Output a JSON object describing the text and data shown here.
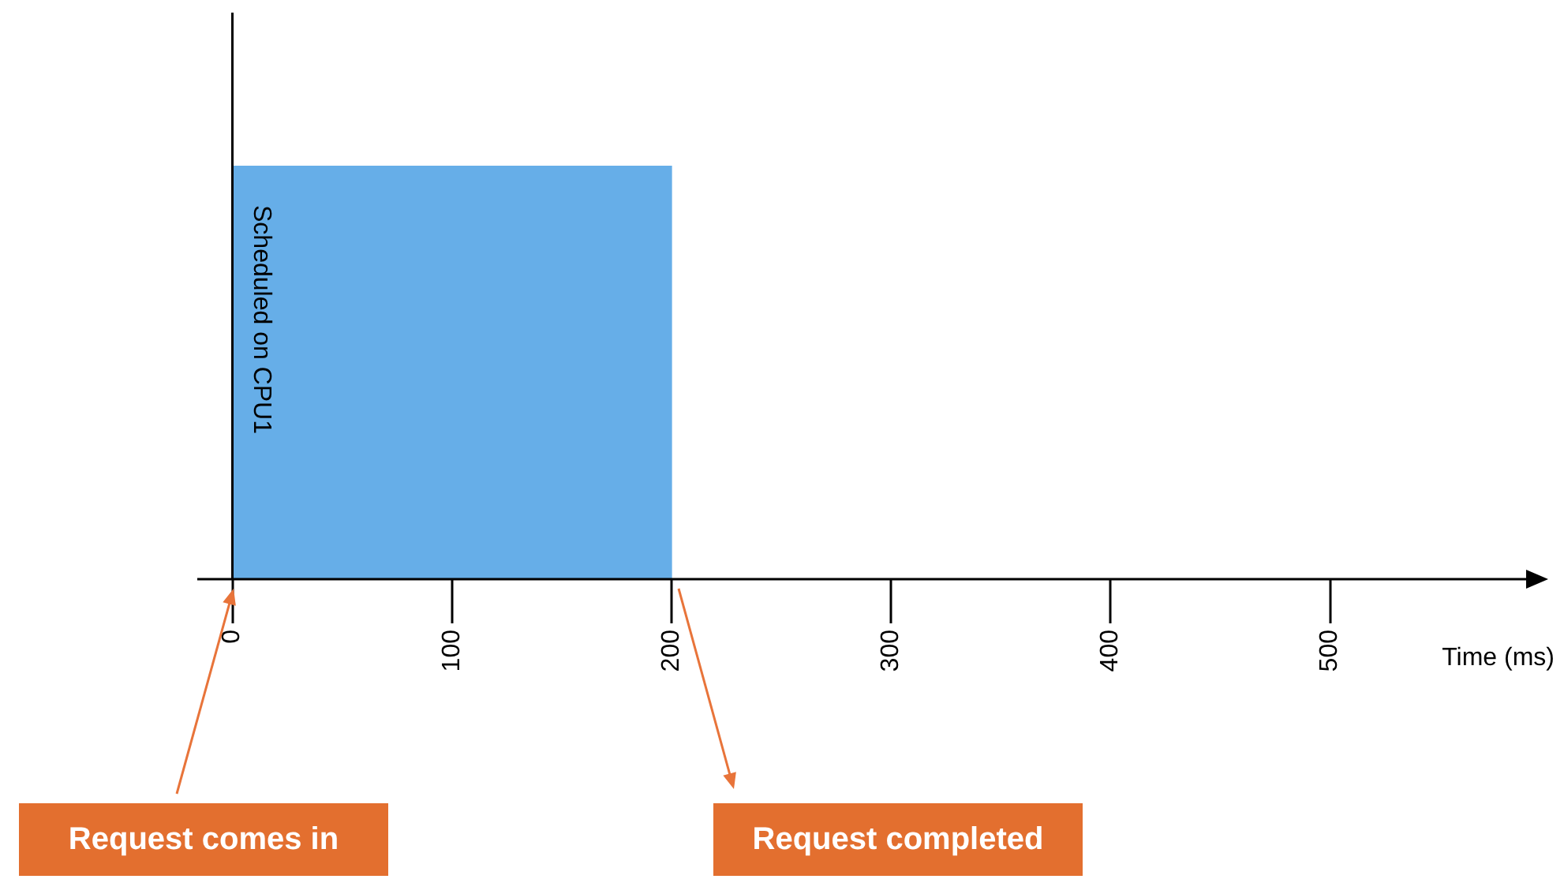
{
  "chart_data": {
    "type": "bar",
    "orientation": "horizontal",
    "ylabel": "Scheduled on CPU1",
    "xlabel": "Time (ms)",
    "categories": [
      null
    ],
    "series": [
      {
        "values": [
          200
        ],
        "color": "#66aee8"
      }
    ],
    "xlim": [
      -16,
      595
    ],
    "xticks": [
      0,
      100,
      200,
      300,
      400,
      500
    ],
    "annotations": [
      "Request comes in",
      "Request completed"
    ]
  }
}
